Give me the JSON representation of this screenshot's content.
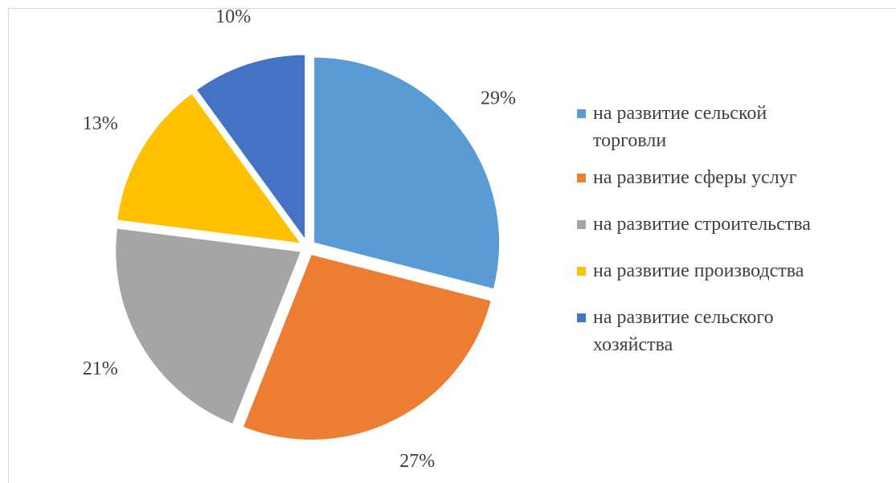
{
  "chart_data": {
    "type": "pie",
    "categories": [
      "на развитие сельской торговли",
      "на развитие сферы услуг",
      "на развитие строительства",
      "на развитие производства",
      "на развитие сельского хозяйства"
    ],
    "values": [
      29,
      27,
      21,
      13,
      10
    ],
    "value_labels": [
      "29%",
      "27%",
      "21%",
      "13%",
      "10%"
    ],
    "colors": [
      "#5b9bd5",
      "#ed7d31",
      "#a5a5a5",
      "#ffc000",
      "#4472c4"
    ],
    "legend": "right"
  }
}
